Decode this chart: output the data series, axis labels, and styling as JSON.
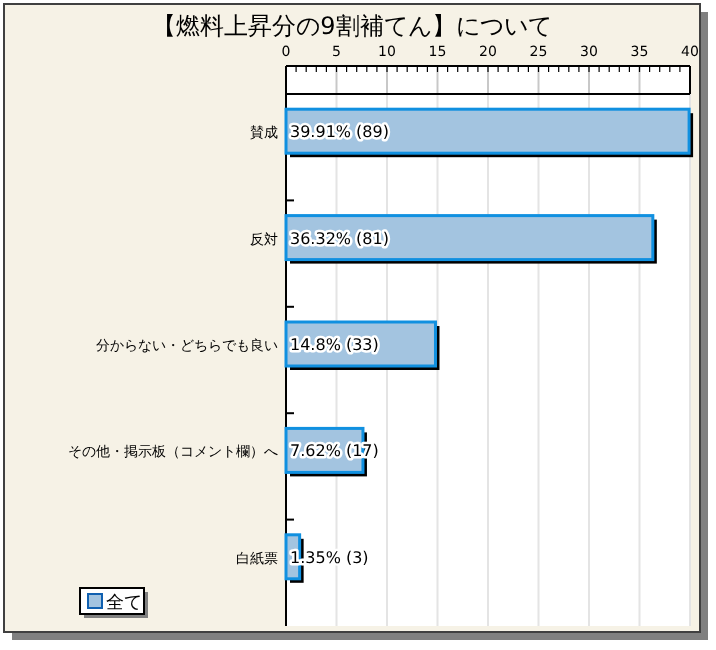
{
  "chart_data": {
    "type": "bar",
    "orientation": "horizontal",
    "title": "【燃料上昇分の9割補てん】について",
    "categories": [
      "賛成",
      "反対",
      "分からない・どちらでも良い",
      "その他・掲示板（コメント欄）へ",
      "白紙票"
    ],
    "series": [
      {
        "name": "全て",
        "color": "#a3c4e0",
        "values": [
          39.91,
          36.32,
          14.8,
          7.62,
          1.35
        ],
        "value_labels": [
          "39.91% (89)",
          "36.32% (81)",
          "14.8% (33)",
          "7.62% (17)",
          "1.35% (3)"
        ]
      }
    ],
    "xlim": [
      0,
      40
    ],
    "xticks": [
      0,
      5,
      10,
      15,
      20,
      25,
      30,
      35,
      40
    ],
    "grid": "x",
    "legend": "bottom left"
  }
}
